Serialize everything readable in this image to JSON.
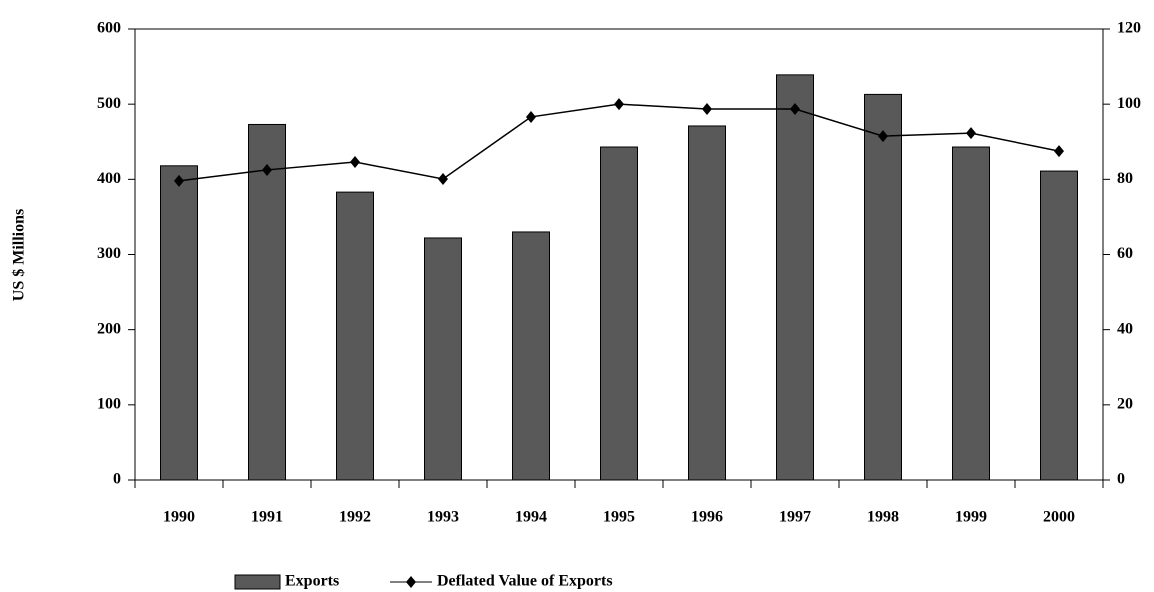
{
  "chart_data": {
    "type": "bar",
    "ylabel": "US $ Millions",
    "categories": [
      "1990",
      "1991",
      "1992",
      "1993",
      "1994",
      "1995",
      "1996",
      "1997",
      "1998",
      "1999",
      "2000"
    ],
    "series": [
      {
        "name": "Exports",
        "type": "bar",
        "color": "#595959",
        "axis": "y",
        "values": [
          418,
          473,
          383,
          322,
          330,
          443,
          471,
          539,
          513,
          443,
          411
        ]
      },
      {
        "name": "Deflated Value of Exports",
        "type": "line",
        "color": "#000000",
        "axis": "y2",
        "values": [
          79.6,
          82.5,
          84.6,
          80.1,
          96.6,
          100,
          98.7,
          98.7,
          91.5,
          92.3,
          87.5
        ]
      }
    ],
    "ylim": [
      0,
      600
    ],
    "yticks": [
      0,
      100,
      200,
      300,
      400,
      500,
      600
    ],
    "y2lim": [
      0,
      120
    ],
    "y2ticks": [
      0,
      20,
      40,
      60,
      80,
      100,
      120
    ],
    "grid": false,
    "legend": "bottom"
  }
}
